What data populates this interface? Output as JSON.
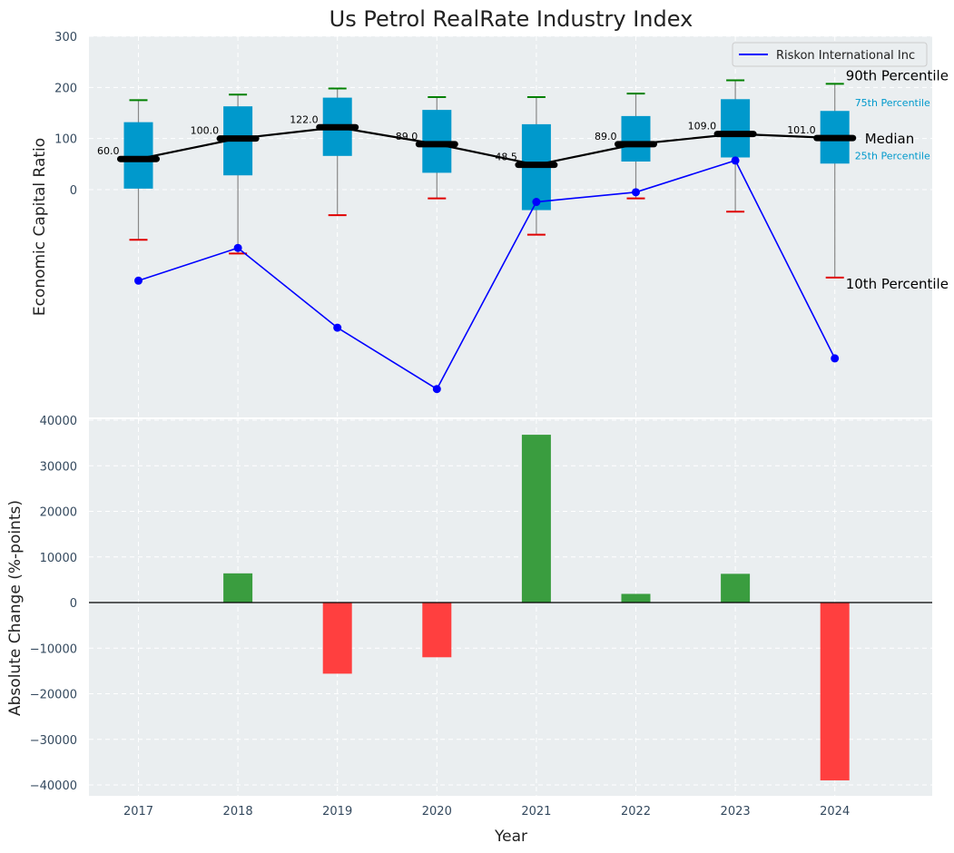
{
  "chart_data": [
    {
      "type": "box",
      "title": "Us Petrol RealRate Industry Index",
      "ylabel": "Economic Capital Ratio",
      "ylim": [
        -440,
        300
      ],
      "yticks": [
        0,
        100,
        200,
        300
      ],
      "categories": [
        "2017",
        "2018",
        "2019",
        "2020",
        "2021",
        "2022",
        "2023",
        "2024"
      ],
      "p10": [
        -98,
        -125,
        -50,
        -17,
        -88,
        -17,
        -43,
        -172
      ],
      "p25": [
        2,
        28,
        66,
        33,
        -40,
        55,
        63,
        51
      ],
      "median": [
        60,
        100,
        122,
        89,
        48.5,
        89,
        109,
        101
      ],
      "p75": [
        132,
        163,
        180,
        156,
        128,
        144,
        177,
        154
      ],
      "p90": [
        175,
        186,
        198,
        181,
        181,
        188,
        214,
        207
      ],
      "median_labels": [
        "60.0",
        "100.0",
        "122.0",
        "89.0",
        "48.5",
        "89.0",
        "109.0",
        "101.0"
      ],
      "series": [
        {
          "name": "Riskon International Inc",
          "values": [
            -178,
            -114,
            -270,
            -390,
            -24,
            -5,
            57,
            -330
          ]
        }
      ],
      "annotations": {
        "p90": "90th Percentile",
        "p75": "75th Percentile",
        "median": "Median",
        "p25": "25th Percentile",
        "p10": "10th Percentile"
      },
      "legend": "top-right",
      "colors": {
        "box": "#0099cc",
        "median": "#000000",
        "series": "#0000ff",
        "p90cap": "#008000",
        "p10cap": "#e00000",
        "pctlabel": "#0099cc"
      }
    },
    {
      "type": "bar",
      "xlabel": "Year",
      "ylabel": "Absolute Change (%-points)",
      "ylim": [
        -42500,
        40000
      ],
      "yticks": [
        -40000,
        -30000,
        -20000,
        -10000,
        0,
        10000,
        20000,
        30000,
        40000
      ],
      "ytick_labels": [
        "−40000",
        "−30000",
        "−20000",
        "−10000",
        "0",
        "10000",
        "20000",
        "30000",
        "40000"
      ],
      "categories": [
        "2017",
        "2018",
        "2019",
        "2020",
        "2021",
        "2022",
        "2023",
        "2024"
      ],
      "values": [
        0,
        6400,
        -15600,
        -12000,
        36800,
        1900,
        6300,
        -39000
      ],
      "colors": {
        "positive": "#3a9d3f",
        "negative": "#ff3f3f"
      }
    }
  ]
}
